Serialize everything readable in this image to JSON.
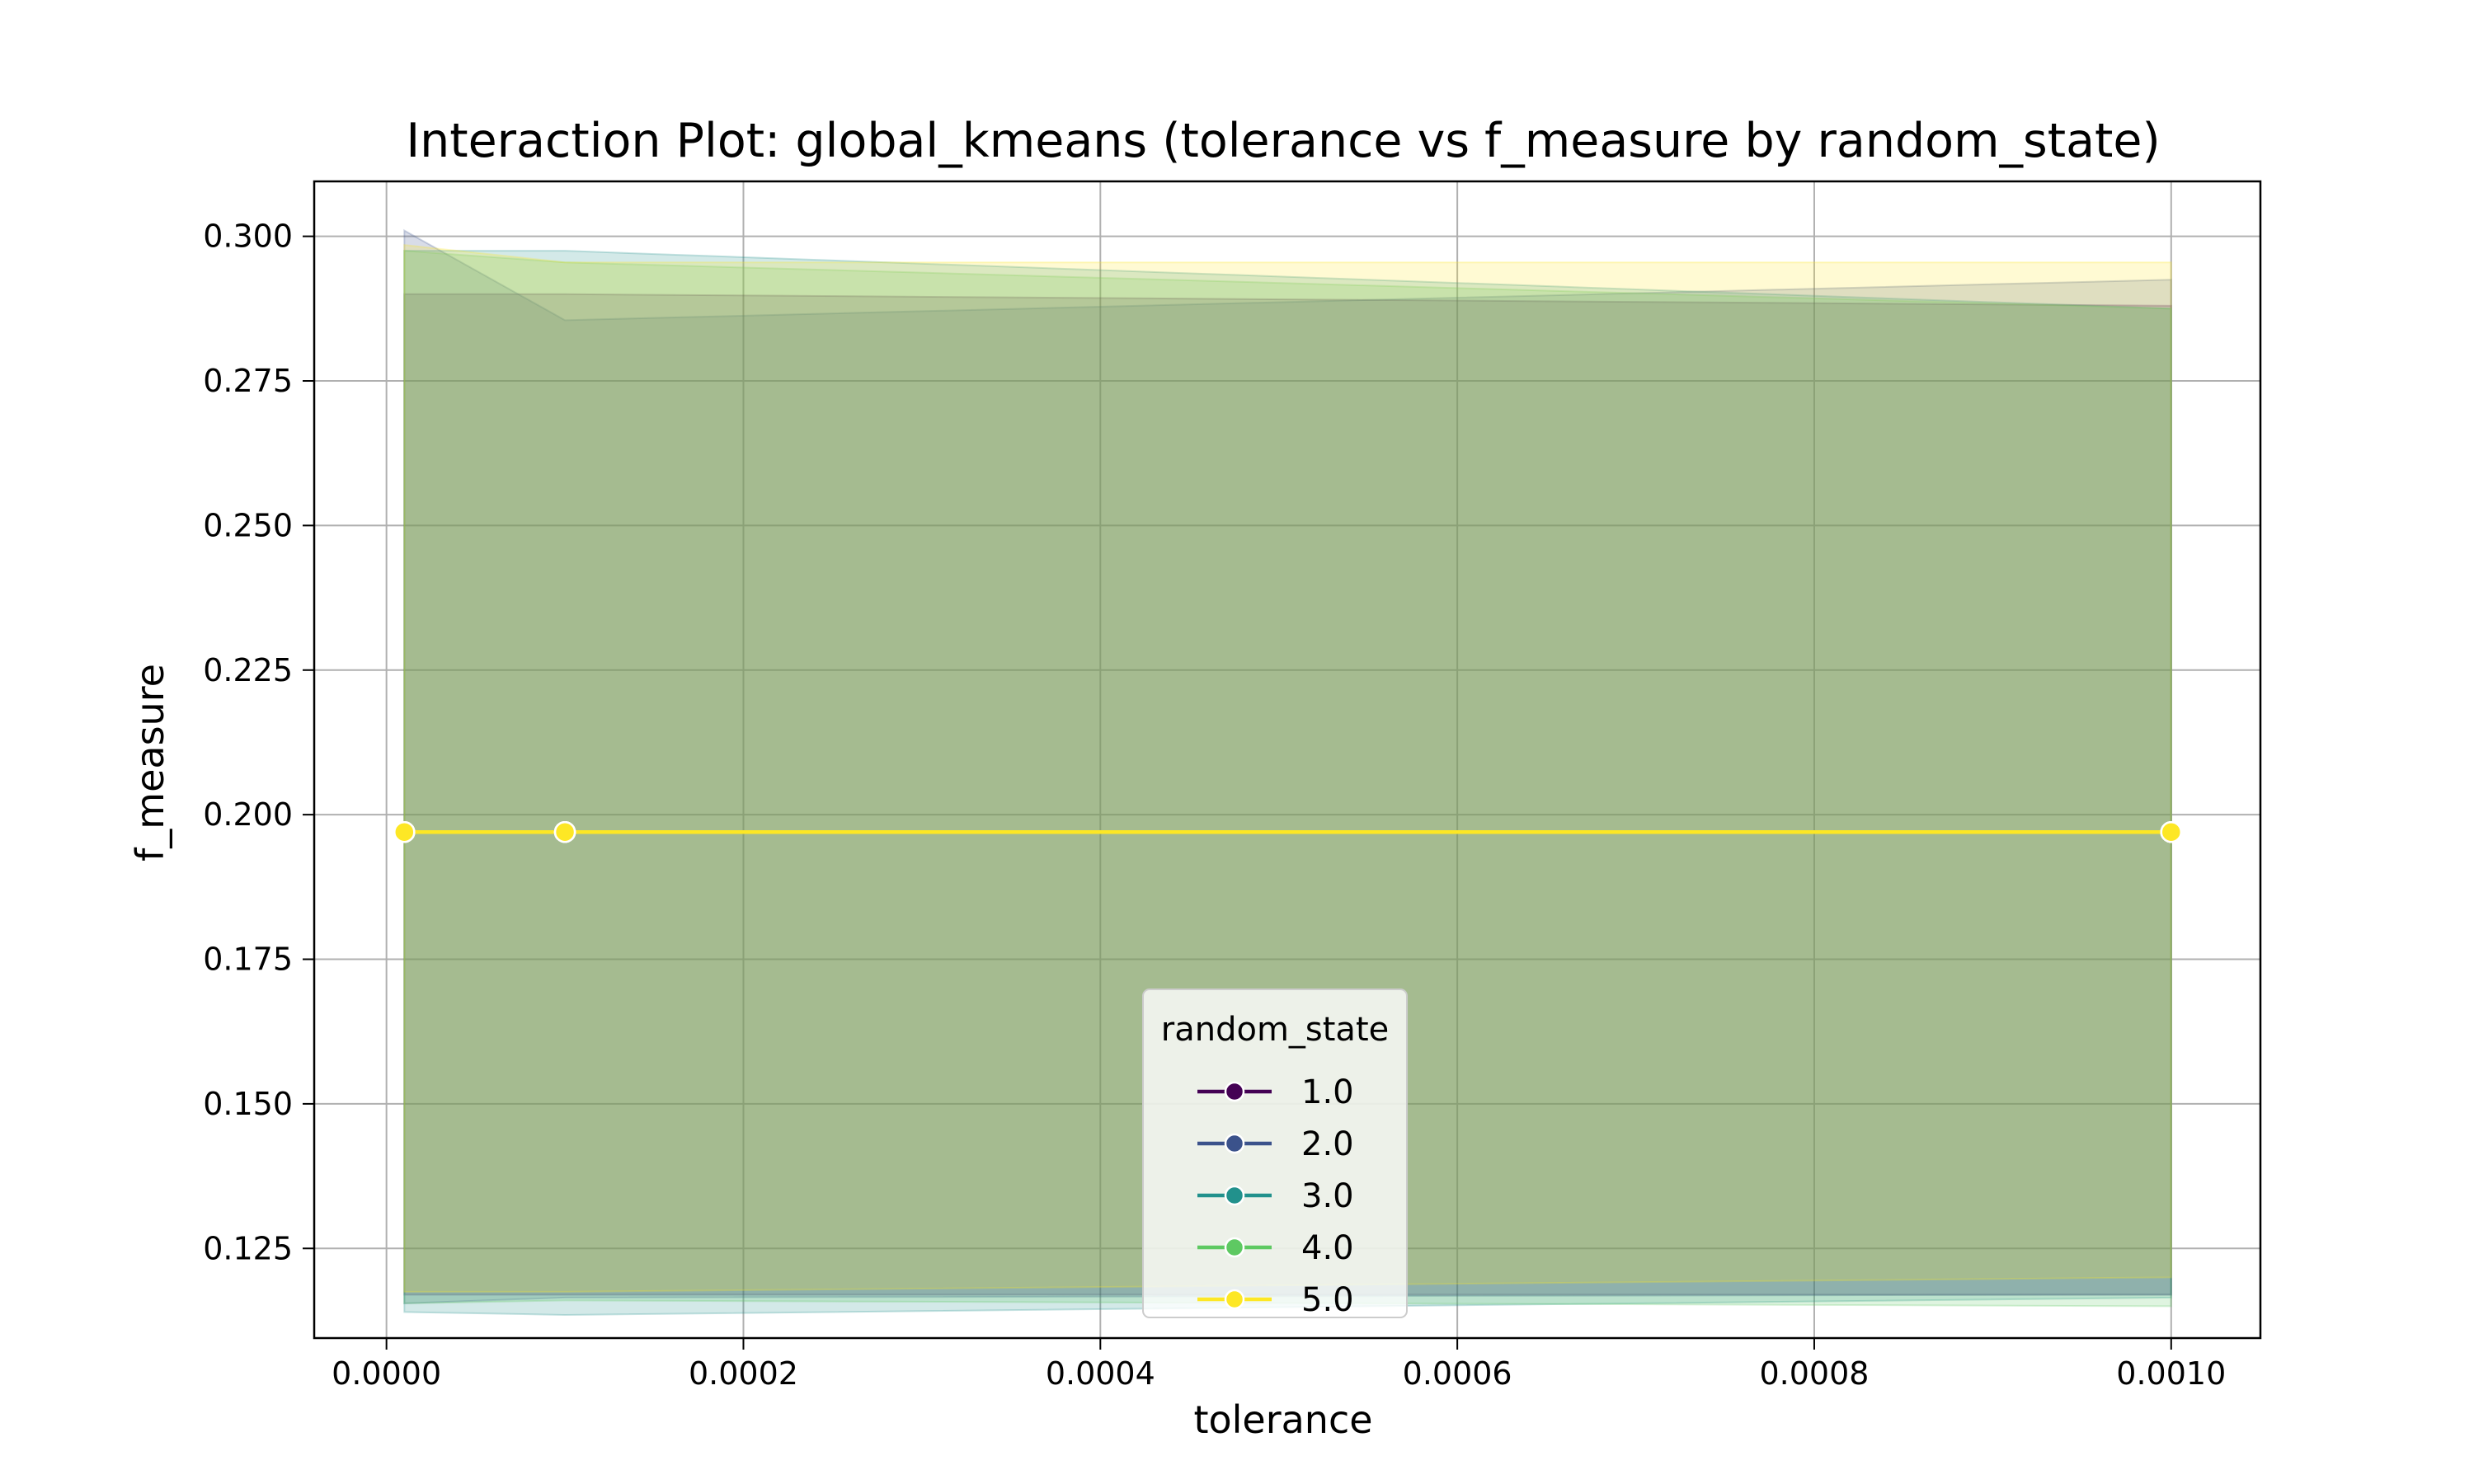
{
  "chart_data": {
    "type": "line",
    "title": "Interaction Plot: global_kmeans (tolerance vs f_measure by random_state)",
    "xlabel": "tolerance",
    "ylabel": "f_measure",
    "x": [
      1e-05,
      0.0001,
      0.001
    ],
    "xlim": [
      -4.05e-05,
      0.00105
    ],
    "ylim": [
      0.1095,
      0.3095
    ],
    "xticks": [
      0.0,
      0.0002,
      0.0004,
      0.0006,
      0.0008,
      0.001
    ],
    "xtick_labels": [
      "0.0000",
      "0.0002",
      "0.0004",
      "0.0006",
      "0.0008",
      "0.0010"
    ],
    "yticks": [
      0.125,
      0.15,
      0.175,
      0.2,
      0.225,
      0.25,
      0.275,
      0.3
    ],
    "ytick_labels": [
      "0.125",
      "0.150",
      "0.175",
      "0.200",
      "0.225",
      "0.250",
      "0.275",
      "0.300"
    ],
    "grid": true,
    "legend": {
      "title": "random_state",
      "placement": "lower-center"
    },
    "series": [
      {
        "name": "1.0",
        "color": "#440154",
        "values": [
          0.197,
          0.197,
          0.197
        ],
        "ci_lower": [
          0.117,
          0.117,
          0.117
        ],
        "ci_upper": [
          0.29,
          0.29,
          0.288
        ]
      },
      {
        "name": "2.0",
        "color": "#3b528b",
        "values": [
          0.197,
          0.197,
          0.197
        ],
        "ci_lower": [
          0.1155,
          0.1165,
          0.117
        ],
        "ci_upper": [
          0.301,
          0.2855,
          0.2925
        ]
      },
      {
        "name": "3.0",
        "color": "#21918c",
        "values": [
          0.197,
          0.197,
          0.197
        ],
        "ci_lower": [
          0.114,
          0.1135,
          0.1165
        ],
        "ci_upper": [
          0.2975,
          0.2975,
          0.2875
        ]
      },
      {
        "name": "4.0",
        "color": "#5ec962",
        "values": [
          0.197,
          0.197,
          0.197
        ],
        "ci_lower": [
          0.1155,
          0.116,
          0.115
        ],
        "ci_upper": [
          0.2975,
          0.2955,
          0.2875
        ]
      },
      {
        "name": "5.0",
        "color": "#fde725",
        "values": [
          0.197,
          0.197,
          0.197
        ],
        "ci_lower": [
          0.1175,
          0.1175,
          0.12
        ],
        "ci_upper": [
          0.2985,
          0.2955,
          0.2955
        ]
      }
    ]
  }
}
